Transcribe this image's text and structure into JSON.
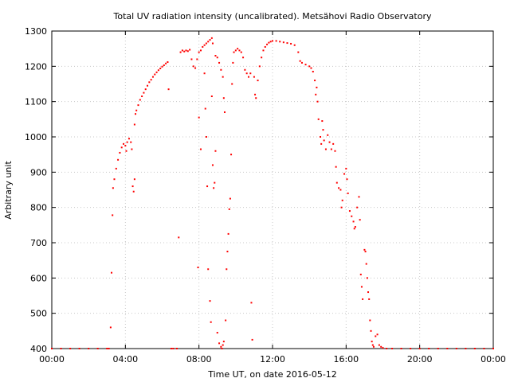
{
  "chart_data": {
    "type": "scatter",
    "title": "Total UV radiation intensity (uncalibrated). Metsähovi Radio Observatory",
    "xlabel": "Time UT, on date 2016-05-12",
    "ylabel": "Arbitrary unit",
    "xlim": [
      0,
      24
    ],
    "ylim": [
      400,
      1300
    ],
    "x_ticks": [
      {
        "value": 0,
        "label": "00:00"
      },
      {
        "value": 4,
        "label": "04:00"
      },
      {
        "value": 8,
        "label": "08:00"
      },
      {
        "value": 12,
        "label": "12:00"
      },
      {
        "value": 16,
        "label": "16:00"
      },
      {
        "value": 20,
        "label": "20:00"
      },
      {
        "value": 24,
        "label": "00:00"
      }
    ],
    "y_ticks": [
      400,
      500,
      600,
      700,
      800,
      900,
      1000,
      1100,
      1200,
      1300
    ],
    "grid": true,
    "legend": "none",
    "colors": {
      "series": "#ff0000",
      "grid": "#c8c8c8",
      "axes": "#000000"
    },
    "series": [
      {
        "points": [
          [
            0.0,
            400
          ],
          [
            0.5,
            400
          ],
          [
            1.0,
            400
          ],
          [
            1.5,
            400
          ],
          [
            2.0,
            400
          ],
          [
            2.5,
            400
          ],
          [
            3.0,
            400
          ],
          [
            3.1,
            400
          ],
          [
            3.2,
            460
          ],
          [
            3.25,
            615
          ],
          [
            3.3,
            778
          ],
          [
            3.33,
            855
          ],
          [
            3.4,
            880
          ],
          [
            3.5,
            910
          ],
          [
            3.6,
            935
          ],
          [
            3.7,
            955
          ],
          [
            3.8,
            970
          ],
          [
            3.9,
            980
          ],
          [
            4.0,
            975
          ],
          [
            4.05,
            960
          ],
          [
            4.1,
            985
          ],
          [
            4.2,
            995
          ],
          [
            4.3,
            985
          ],
          [
            4.35,
            965
          ],
          [
            4.4,
            860
          ],
          [
            4.45,
            845
          ],
          [
            4.5,
            880
          ],
          [
            4.5,
            1035
          ],
          [
            4.55,
            1065
          ],
          [
            4.6,
            1075
          ],
          [
            4.7,
            1090
          ],
          [
            4.8,
            1105
          ],
          [
            4.9,
            1115
          ],
          [
            5.0,
            1125
          ],
          [
            5.1,
            1135
          ],
          [
            5.2,
            1145
          ],
          [
            5.3,
            1155
          ],
          [
            5.4,
            1162
          ],
          [
            5.5,
            1170
          ],
          [
            5.6,
            1177
          ],
          [
            5.7,
            1183
          ],
          [
            5.8,
            1189
          ],
          [
            5.9,
            1194
          ],
          [
            6.0,
            1199
          ],
          [
            6.1,
            1203
          ],
          [
            6.2,
            1208
          ],
          [
            6.3,
            1212
          ],
          [
            6.35,
            1135
          ],
          [
            6.5,
            400
          ],
          [
            6.6,
            400
          ],
          [
            6.8,
            400
          ],
          [
            6.9,
            715
          ],
          [
            7.0,
            1240
          ],
          [
            7.1,
            1245
          ],
          [
            7.2,
            1242
          ],
          [
            7.3,
            1245
          ],
          [
            7.4,
            1243
          ],
          [
            7.5,
            1247
          ],
          [
            7.6,
            1220
          ],
          [
            7.7,
            1200
          ],
          [
            7.8,
            1195
          ],
          [
            7.9,
            1220
          ],
          [
            8.0,
            1240
          ],
          [
            8.1,
            1245
          ],
          [
            8.2,
            1255
          ],
          [
            8.3,
            1260
          ],
          [
            8.4,
            1265
          ],
          [
            8.5,
            1270
          ],
          [
            8.6,
            1275
          ],
          [
            8.7,
            1280
          ],
          [
            8.75,
            1265
          ],
          [
            7.95,
            630
          ],
          [
            8.0,
            1055
          ],
          [
            8.1,
            965
          ],
          [
            8.3,
            1180
          ],
          [
            8.35,
            1080
          ],
          [
            8.4,
            1000
          ],
          [
            8.45,
            860
          ],
          [
            8.5,
            625
          ],
          [
            8.6,
            535
          ],
          [
            8.65,
            475
          ],
          [
            8.7,
            1115
          ],
          [
            8.75,
            920
          ],
          [
            8.8,
            855
          ],
          [
            8.85,
            870
          ],
          [
            8.9,
            960
          ],
          [
            8.9,
            1230
          ],
          [
            9.0,
            1225
          ],
          [
            9.1,
            1210
          ],
          [
            9.2,
            1190
          ],
          [
            9.3,
            1170
          ],
          [
            9.35,
            1110
          ],
          [
            9.4,
            1070
          ],
          [
            9.0,
            445
          ],
          [
            9.1,
            415
          ],
          [
            9.2,
            405
          ],
          [
            9.25,
            400
          ],
          [
            9.3,
            410
          ],
          [
            9.35,
            420
          ],
          [
            9.45,
            480
          ],
          [
            9.5,
            625
          ],
          [
            9.55,
            675
          ],
          [
            9.6,
            725
          ],
          [
            9.65,
            795
          ],
          [
            9.7,
            825
          ],
          [
            9.75,
            950
          ],
          [
            9.8,
            1150
          ],
          [
            9.85,
            1210
          ],
          [
            9.9,
            1240
          ],
          [
            10.0,
            1245
          ],
          [
            10.1,
            1250
          ],
          [
            10.2,
            1245
          ],
          [
            10.3,
            1240
          ],
          [
            10.4,
            1225
          ],
          [
            10.5,
            1190
          ],
          [
            10.6,
            1180
          ],
          [
            10.7,
            1170
          ],
          [
            10.8,
            1180
          ],
          [
            10.85,
            530
          ],
          [
            10.9,
            425
          ],
          [
            11.0,
            1170
          ],
          [
            11.05,
            1120
          ],
          [
            11.1,
            1110
          ],
          [
            11.2,
            1160
          ],
          [
            11.3,
            1200
          ],
          [
            11.4,
            1225
          ],
          [
            11.5,
            1245
          ],
          [
            11.6,
            1255
          ],
          [
            11.7,
            1262
          ],
          [
            11.8,
            1267
          ],
          [
            11.9,
            1270
          ],
          [
            12.0,
            1272
          ],
          [
            12.2,
            1272
          ],
          [
            12.4,
            1270
          ],
          [
            12.6,
            1268
          ],
          [
            12.8,
            1266
          ],
          [
            13.0,
            1264
          ],
          [
            13.2,
            1260
          ],
          [
            13.4,
            1240
          ],
          [
            13.5,
            1215
          ],
          [
            13.6,
            1210
          ],
          [
            13.8,
            1205
          ],
          [
            14.0,
            1200
          ],
          [
            14.1,
            1195
          ],
          [
            14.2,
            1185
          ],
          [
            14.3,
            1160
          ],
          [
            14.35,
            1120
          ],
          [
            14.4,
            1140
          ],
          [
            14.45,
            1100
          ],
          [
            14.5,
            1050
          ],
          [
            14.6,
            1000
          ],
          [
            14.65,
            980
          ],
          [
            14.7,
            1045
          ],
          [
            14.75,
            1020
          ],
          [
            14.8,
            990
          ],
          [
            14.9,
            965
          ],
          [
            15.0,
            1005
          ],
          [
            15.1,
            985
          ],
          [
            15.2,
            965
          ],
          [
            15.3,
            980
          ],
          [
            15.4,
            960
          ],
          [
            15.45,
            915
          ],
          [
            15.5,
            870
          ],
          [
            15.6,
            855
          ],
          [
            15.7,
            850
          ],
          [
            15.75,
            800
          ],
          [
            15.8,
            820
          ],
          [
            15.9,
            895
          ],
          [
            16.0,
            910
          ],
          [
            16.05,
            880
          ],
          [
            16.1,
            840
          ],
          [
            16.2,
            790
          ],
          [
            16.3,
            775
          ],
          [
            16.4,
            760
          ],
          [
            16.45,
            740
          ],
          [
            16.5,
            745
          ],
          [
            16.6,
            800
          ],
          [
            16.7,
            830
          ],
          [
            16.75,
            765
          ],
          [
            16.8,
            610
          ],
          [
            16.85,
            575
          ],
          [
            16.9,
            540
          ],
          [
            17.0,
            680
          ],
          [
            17.05,
            675
          ],
          [
            17.1,
            640
          ],
          [
            17.15,
            600
          ],
          [
            17.2,
            560
          ],
          [
            17.25,
            540
          ],
          [
            17.3,
            480
          ],
          [
            17.35,
            450
          ],
          [
            17.4,
            420
          ],
          [
            17.45,
            410
          ],
          [
            17.5,
            405
          ],
          [
            17.6,
            435
          ],
          [
            17.7,
            440
          ],
          [
            17.8,
            410
          ],
          [
            17.9,
            405
          ],
          [
            18.0,
            402
          ],
          [
            18.2,
            400
          ],
          [
            18.5,
            400
          ],
          [
            19.0,
            400
          ],
          [
            19.5,
            400
          ],
          [
            20.0,
            400
          ],
          [
            20.5,
            400
          ],
          [
            21.0,
            400
          ],
          [
            21.5,
            400
          ],
          [
            22.0,
            400
          ],
          [
            22.5,
            400
          ],
          [
            23.0,
            400
          ],
          [
            23.5,
            400
          ],
          [
            24.0,
            400
          ]
        ]
      }
    ]
  }
}
